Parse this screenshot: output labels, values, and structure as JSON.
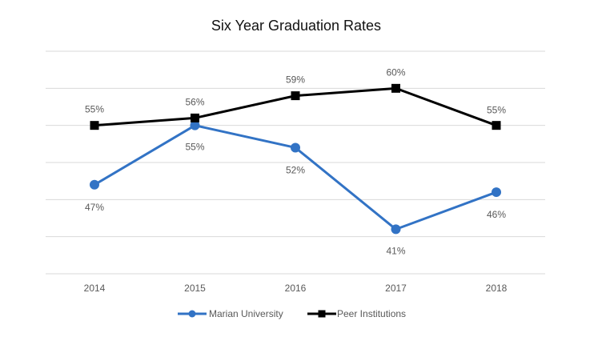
{
  "chart_data": {
    "type": "line",
    "title": "Six Year Graduation Rates",
    "categories": [
      "2014",
      "2015",
      "2016",
      "2017",
      "2018"
    ],
    "series": [
      {
        "name": "Marian University",
        "values": [
          47,
          55,
          52,
          41,
          46
        ],
        "labels": [
          "47%",
          "55%",
          "52%",
          "41%",
          "46%"
        ],
        "color": "#3273c5",
        "marker": "circle"
      },
      {
        "name": "Peer Institutions",
        "values": [
          55,
          56,
          59,
          60,
          55
        ],
        "labels": [
          "55%",
          "56%",
          "59%",
          "60%",
          "55%"
        ],
        "color": "#000000",
        "marker": "square"
      }
    ],
    "ylim": [
      35,
      65
    ],
    "grid": true,
    "legend_position": "bottom"
  }
}
